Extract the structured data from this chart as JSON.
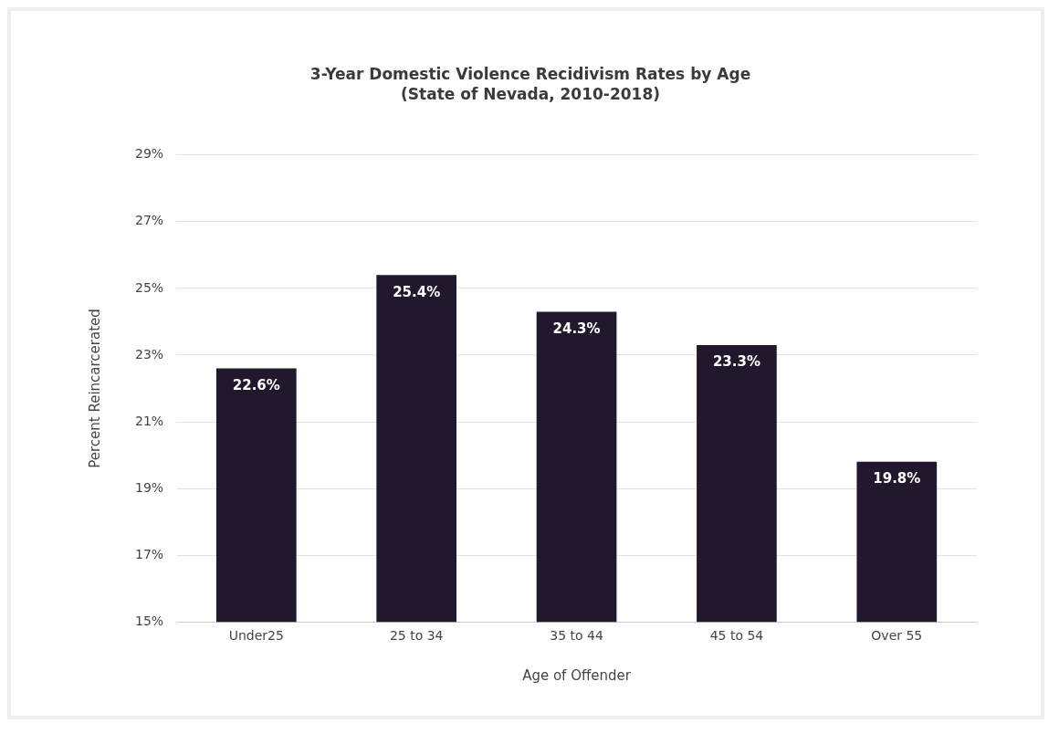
{
  "chart_data": {
    "type": "bar",
    "title": "3-Year Domestic Violence Recidivism Rates by Age",
    "subtitle": "(State of Nevada, 2010-2018)",
    "xlabel": "Age of Offender",
    "ylabel": "Percent Reincarcerated",
    "categories": [
      "Under25",
      "25 to 34",
      "35 to 44",
      "45 to 54",
      "Over 55"
    ],
    "values": [
      22.6,
      25.4,
      24.3,
      23.3,
      19.8
    ],
    "value_labels": [
      "22.6%",
      "25.4%",
      "24.3%",
      "23.3%",
      "19.8%"
    ],
    "color": "#21182e",
    "ylim": [
      15,
      29
    ],
    "yticks": [
      {
        "value": 15,
        "label": "15%"
      },
      {
        "value": 17,
        "label": "17%"
      },
      {
        "value": 19,
        "label": "19%"
      },
      {
        "value": 21,
        "label": "21%"
      },
      {
        "value": 23,
        "label": "23%"
      },
      {
        "value": 25,
        "label": "25%"
      },
      {
        "value": 27,
        "label": "27%"
      },
      {
        "value": 29,
        "label": "29%"
      }
    ],
    "grid": "y",
    "legend": false
  }
}
